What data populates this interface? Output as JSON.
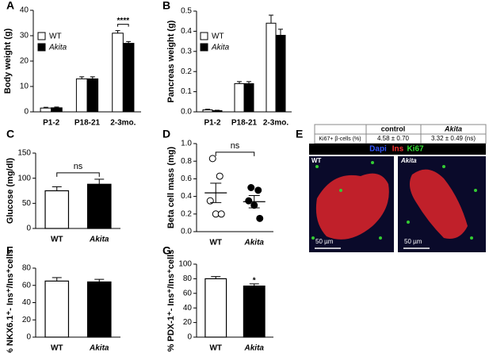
{
  "chart_data": [
    {
      "type": "bar",
      "panel": "A",
      "ylabel": "Body weight (g)",
      "categories": [
        "P1-2",
        "P18-21",
        "2-3mo."
      ],
      "series": [
        {
          "name": "WT",
          "color": "#ffffff",
          "values": [
            1.5,
            13,
            31
          ],
          "errors": [
            0.3,
            0.8,
            1
          ]
        },
        {
          "name": "Akita",
          "color": "#000000",
          "values": [
            1.6,
            13,
            27
          ],
          "errors": [
            0.3,
            0.8,
            0.7
          ]
        }
      ],
      "ylim": [
        0,
        40
      ],
      "yticks": [
        0,
        10,
        20,
        30,
        40
      ],
      "annotation": "****"
    },
    {
      "type": "bar",
      "panel": "B",
      "ylabel": "Pancreas weight (g)",
      "categories": [
        "P1-2",
        "P18-21",
        "2-3mo."
      ],
      "series": [
        {
          "name": "WT",
          "color": "#ffffff",
          "values": [
            0.01,
            0.14,
            0.44
          ],
          "errors": [
            0.003,
            0.01,
            0.04
          ]
        },
        {
          "name": "Akita",
          "color": "#000000",
          "values": [
            0.006,
            0.14,
            0.38
          ],
          "errors": [
            0.002,
            0.01,
            0.03
          ]
        }
      ],
      "ylim": [
        0,
        0.5
      ],
      "yticks": [
        {
          "value": 0,
          "label": "0.0"
        },
        0.1,
        0.2,
        0.3,
        0.4,
        0.5
      ]
    },
    {
      "type": "bar",
      "panel": "C",
      "ylabel": "Glucose (mg/dl)",
      "categories": [
        "WT",
        "Akita"
      ],
      "values": [
        75,
        88
      ],
      "errors": [
        8,
        10
      ],
      "colors": [
        "#ffffff",
        "#000000"
      ],
      "ylim": [
        0,
        150
      ],
      "yticks": [
        0,
        50,
        100,
        150
      ],
      "annotation": "ns"
    },
    {
      "type": "scatter",
      "panel": "D",
      "ylabel": "Beta cell mass (mg)",
      "categories": [
        "WT",
        "Akita"
      ],
      "points": [
        [
          0.83,
          0.63,
          0.35,
          0.2,
          0.2
        ],
        [
          0.5,
          0.47,
          0.35,
          0.3,
          0.15
        ]
      ],
      "values": [
        0.44,
        0.34
      ],
      "errors": [
        0.11,
        0.07
      ],
      "colors": [
        "#ffffff",
        "#000000"
      ],
      "ylim": [
        0,
        1
      ],
      "yticks": [
        {
          "value": 0,
          "label": "0.0"
        },
        0.2,
        0.4,
        0.6,
        0.8,
        {
          "value": 1,
          "label": "1.0"
        }
      ],
      "annotation": "ns"
    },
    {
      "type": "bar",
      "panel": "F",
      "ylabel": "% NKX6.1⁺- Ins⁺/Ins⁺cells",
      "categories": [
        "WT",
        "Akita"
      ],
      "values": [
        65,
        64
      ],
      "errors": [
        4,
        3
      ],
      "colors": [
        "#ffffff",
        "#000000"
      ],
      "ylim": [
        0,
        80
      ],
      "yticks": [
        0,
        20,
        40,
        60,
        80
      ]
    },
    {
      "type": "bar",
      "panel": "G",
      "ylabel": "% PDX-1⁺- Ins⁺/Ins⁺cells",
      "categories": [
        "WT",
        "Akita"
      ],
      "values": [
        80,
        70
      ],
      "errors": [
        3,
        3
      ],
      "colors": [
        "#ffffff",
        "#000000"
      ],
      "ylim": [
        0,
        100
      ],
      "yticks": [
        0,
        20,
        40,
        60,
        80,
        100
      ],
      "annotation": "*"
    }
  ],
  "panel_e": {
    "panel": "E",
    "table": {
      "header": [
        "control",
        "Akita"
      ],
      "rows": [
        [
          "Ki67+ β-cells (%)",
          "4.58 ± 0.70",
          "3.32 ± 0.49 (ns)"
        ]
      ]
    },
    "stains": [
      "Dapi",
      "Ins",
      "Ki67"
    ],
    "images": [
      {
        "label": "WT",
        "scale": "50 µm"
      },
      {
        "label": "Akita",
        "scale": "50 µm"
      }
    ]
  }
}
